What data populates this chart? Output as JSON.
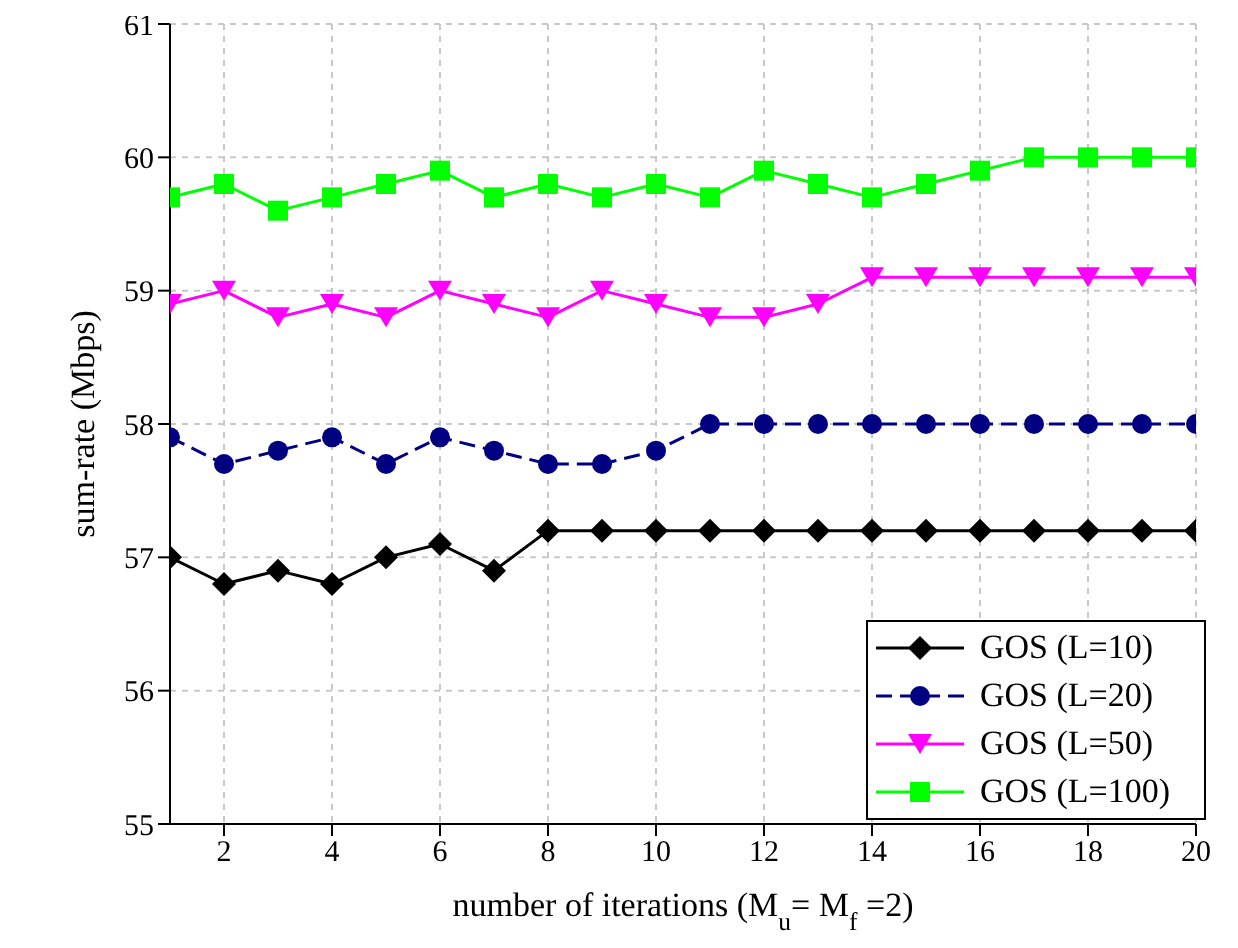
{
  "chart_data": {
    "type": "line",
    "xlabel": "number of iterations (M$_{u}$= M$_{f}$ =2)",
    "ylabel": "sum-rate (Mbps)",
    "x": [
      1,
      2,
      3,
      4,
      5,
      6,
      7,
      8,
      9,
      10,
      11,
      12,
      13,
      14,
      15,
      16,
      17,
      18,
      19,
      20
    ],
    "xlim": [
      1,
      20
    ],
    "xticks": [
      2,
      4,
      6,
      8,
      10,
      12,
      14,
      16,
      18,
      20
    ],
    "ylim": [
      55,
      61
    ],
    "yticks": [
      55,
      56,
      57,
      58,
      59,
      60,
      61
    ],
    "grid": true,
    "legend": "bottom right",
    "series": [
      {
        "name": "GOS (L=10)",
        "color": "#000000",
        "marker": "diamond",
        "line_style": "solid",
        "values": [
          57,
          56.8,
          56.9,
          56.8,
          57,
          57.1,
          56.9,
          57.2,
          57.2,
          57.2,
          57.2,
          57.2,
          57.2,
          57.2,
          57.2,
          57.2,
          57.2,
          57.2,
          57.2,
          57.2
        ]
      },
      {
        "name": "GOS (L=20)",
        "color": "#000080",
        "marker": "circle",
        "line_style": "dashed",
        "values": [
          57.9,
          57.7,
          57.8,
          57.9,
          57.7,
          57.9,
          57.8,
          57.7,
          57.7,
          57.8,
          58,
          58,
          58,
          58,
          58,
          58,
          58,
          58,
          58,
          58
        ]
      },
      {
        "name": "GOS (L=50)",
        "color": "#ff00ff",
        "marker": "triangle",
        "line_style": "solid",
        "values": [
          58.9,
          59,
          58.8,
          58.9,
          58.8,
          59,
          58.9,
          58.8,
          59,
          58.9,
          58.8,
          58.8,
          58.9,
          59.1,
          59.1,
          59.1,
          59.1,
          59.1,
          59.1,
          59.1
        ]
      },
      {
        "name": "GOS (L=100)",
        "color": "#00ff00",
        "marker": "square",
        "line_style": "solid",
        "values": [
          59.7,
          59.8,
          59.6,
          59.7,
          59.8,
          59.9,
          59.7,
          59.8,
          59.7,
          59.8,
          59.7,
          59.9,
          59.8,
          59.7,
          59.8,
          59.9,
          60,
          60,
          60,
          60
        ]
      }
    ]
  }
}
